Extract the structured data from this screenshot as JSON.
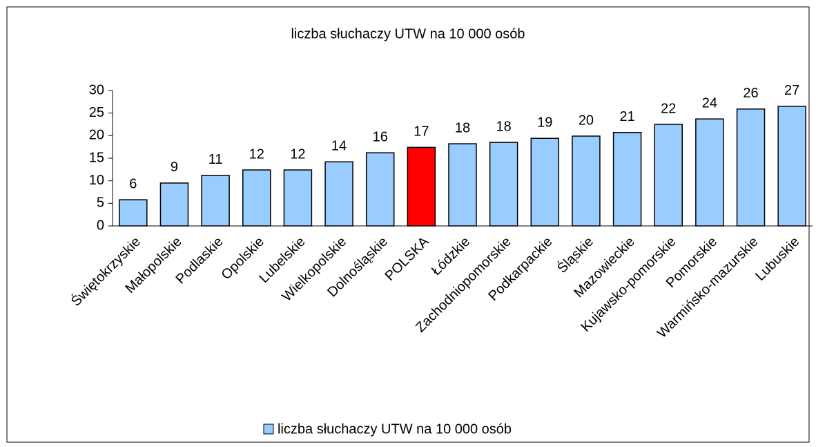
{
  "chart_data": {
    "type": "bar",
    "title": "liczba słuchaczy UTW na 10 000 osób",
    "categories": [
      "Świętokrzyskie",
      "Małopolskie",
      "Podlaskie",
      "Opolskie",
      "Lubelskie",
      "Wielkopolskie",
      "Dolnośląskie",
      "POLSKA",
      "Łódzkie",
      "Zachodniopomorskie",
      "Podkarpackie",
      "Śląskie",
      "Mazowieckie",
      "Kujawsko-pomorskie",
      "Pomorskie",
      "Warmińsko-mazurskie",
      "Lubuskie"
    ],
    "series": [
      {
        "name": "liczba słuchaczy UTW na 10 000 osób",
        "color": "#99ccff",
        "values": [
          5.8,
          9.5,
          11.2,
          12.4,
          12.4,
          14.2,
          16.2,
          17.4,
          18.2,
          18.5,
          19.4,
          19.9,
          20.7,
          22.5,
          23.7,
          25.9,
          26.5
        ],
        "value_labels": [
          "6",
          "9",
          "11",
          "12",
          "12",
          "14",
          "16",
          "17",
          "18",
          "18",
          "19",
          "20",
          "21",
          "22",
          "24",
          "26",
          "27"
        ],
        "colors": [
          "#99ccff",
          "#99ccff",
          "#99ccff",
          "#99ccff",
          "#99ccff",
          "#99ccff",
          "#99ccff",
          "#ff0000",
          "#99ccff",
          "#99ccff",
          "#99ccff",
          "#99ccff",
          "#99ccff",
          "#99ccff",
          "#99ccff",
          "#99ccff",
          "#99ccff"
        ]
      }
    ],
    "ylim": [
      0,
      30
    ],
    "yticks": [
      0,
      5,
      10,
      15,
      20,
      25,
      30
    ],
    "grid": false,
    "legend": "bottom"
  }
}
